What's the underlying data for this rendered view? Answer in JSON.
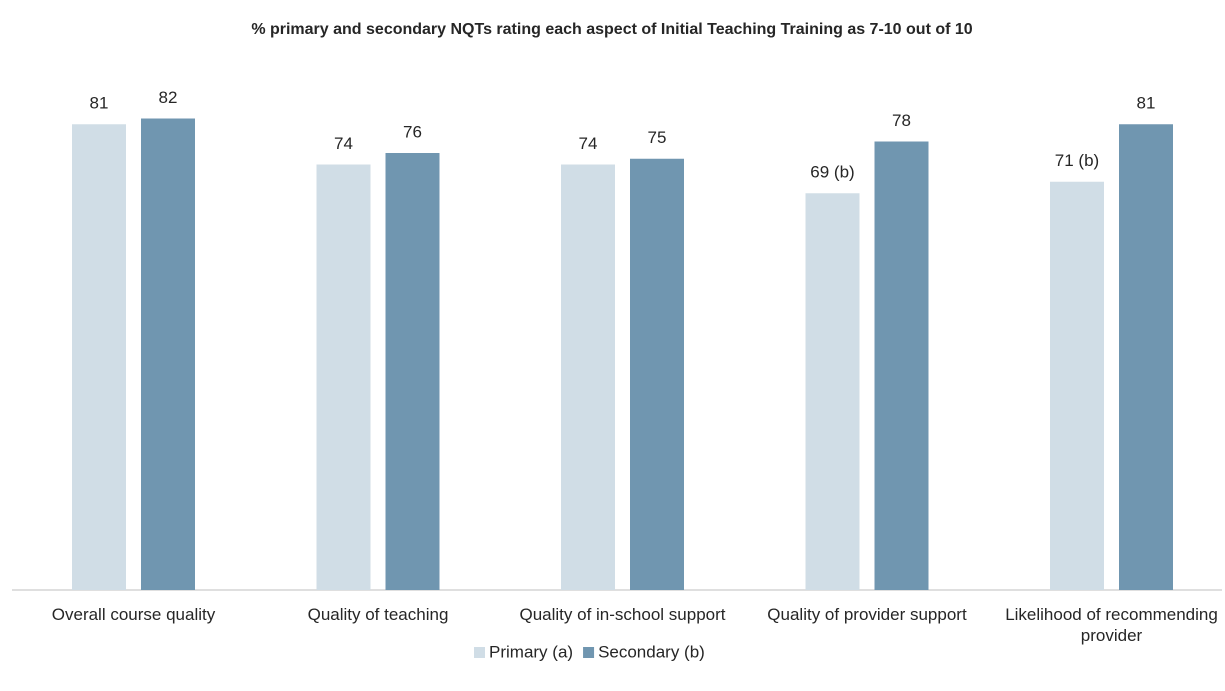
{
  "chart_data": {
    "type": "bar",
    "title": "% primary and secondary NQTs rating each aspect of Initial Teaching Training as 7-10 out of 10",
    "categories": [
      "Overall course quality",
      "Quality of teaching",
      "Quality of in-school support",
      "Quality of provider support",
      "Likelihood of recommending provider"
    ],
    "series": [
      {
        "name": "Primary (a)",
        "color": "#d0dde6",
        "values": [
          81,
          74,
          74,
          69,
          71
        ],
        "value_labels": [
          "81",
          "74",
          "74",
          "69 (b)",
          "71 (b)"
        ]
      },
      {
        "name": "Secondary (b)",
        "color": "#7096b0",
        "values": [
          82,
          76,
          75,
          78,
          81
        ]
      }
    ],
    "legend": "bottom"
  }
}
